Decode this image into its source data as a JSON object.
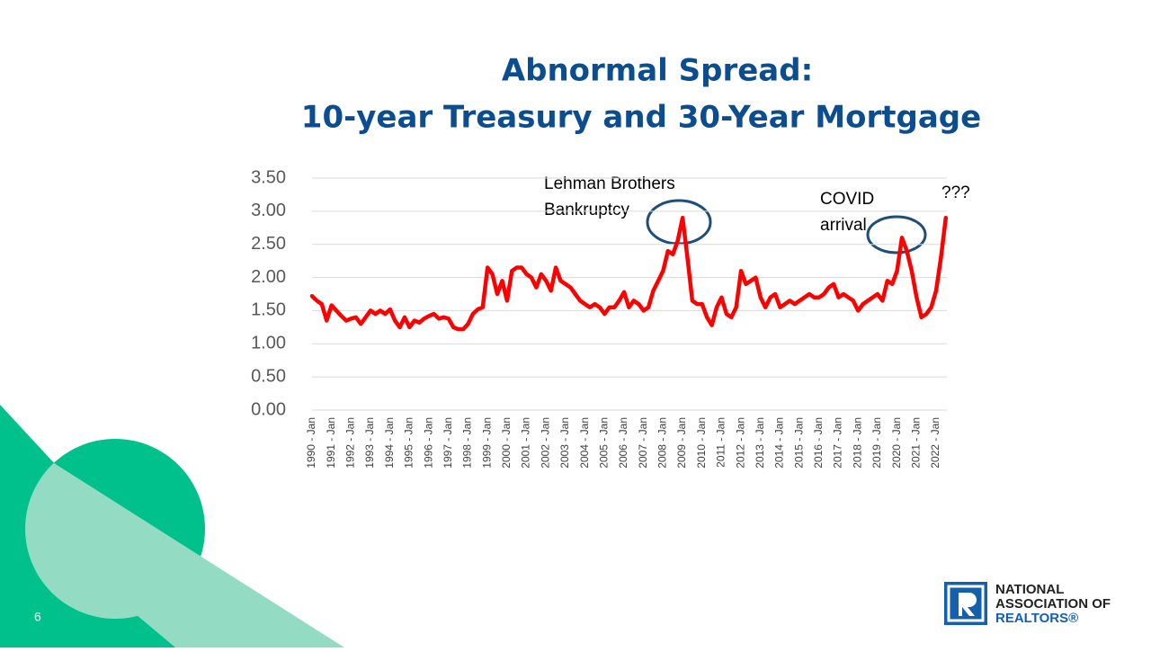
{
  "slide_number": "6",
  "logo": {
    "lines": [
      "NATIONAL",
      "ASSOCIATION OF",
      "REALTORS®"
    ]
  },
  "chart_data": {
    "type": "line",
    "title": [
      "Abnormal Spread:",
      "10-year Treasury and 30-Year Mortgage"
    ],
    "categories": [
      "1990 - Jan",
      null,
      null,
      null,
      "1991 - Jan",
      null,
      null,
      null,
      "1992 - Jan",
      null,
      null,
      null,
      "1993 - Jan",
      null,
      null,
      null,
      "1994 - Jan",
      null,
      null,
      null,
      "1995 - Jan",
      null,
      null,
      null,
      "1996 - Jan",
      null,
      null,
      null,
      "1997 - Jan",
      null,
      null,
      null,
      "1998 - Jan",
      null,
      null,
      null,
      "1999 - Jan",
      null,
      null,
      null,
      "2000 - Jan",
      null,
      null,
      null,
      "2001 - Jan",
      null,
      null,
      null,
      "2002 - Jan",
      null,
      null,
      null,
      "2003 - Jan",
      null,
      null,
      null,
      "2004 - Jan",
      null,
      null,
      null,
      "2005 - Jan",
      null,
      null,
      null,
      "2006 - Jan",
      null,
      null,
      null,
      "2007 - Jan",
      null,
      null,
      null,
      "2008 - Jan",
      null,
      null,
      null,
      "2009 - Jan",
      null,
      null,
      null,
      "2010 - Jan",
      null,
      null,
      null,
      "2011 - Jan",
      null,
      null,
      null,
      "2012 - Jan",
      null,
      null,
      null,
      "2013 - Jan",
      null,
      null,
      null,
      "2014 - Jan",
      null,
      null,
      null,
      "2015 - Jan",
      null,
      null,
      null,
      "2016 - Jan",
      null,
      null,
      null,
      "2017 - Jan",
      null,
      null,
      null,
      "2018 - Jan",
      null,
      null,
      null,
      "2019 - Jan",
      null,
      null,
      null,
      "2020 - Jan",
      null,
      null,
      null,
      "2021 - Jan",
      null,
      null,
      null,
      "2022 - Jan",
      null,
      null
    ],
    "values": [
      1.72,
      1.65,
      1.6,
      1.35,
      1.58,
      1.5,
      1.42,
      1.35,
      1.38,
      1.4,
      1.3,
      1.4,
      1.5,
      1.45,
      1.5,
      1.45,
      1.52,
      1.35,
      1.25,
      1.4,
      1.25,
      1.35,
      1.32,
      1.38,
      1.42,
      1.45,
      1.38,
      1.4,
      1.38,
      1.25,
      1.22,
      1.22,
      1.3,
      1.45,
      1.52,
      1.55,
      2.15,
      2.05,
      1.75,
      1.95,
      1.65,
      2.1,
      2.15,
      2.15,
      2.05,
      2.0,
      1.85,
      2.05,
      1.95,
      1.8,
      2.15,
      1.95,
      1.9,
      1.85,
      1.75,
      1.65,
      1.6,
      1.55,
      1.6,
      1.55,
      1.45,
      1.55,
      1.55,
      1.65,
      1.78,
      1.55,
      1.65,
      1.6,
      1.5,
      1.55,
      1.8,
      1.95,
      2.1,
      2.4,
      2.35,
      2.55,
      2.9,
      2.3,
      1.65,
      1.6,
      1.6,
      1.4,
      1.28,
      1.55,
      1.7,
      1.45,
      1.4,
      1.55,
      2.1,
      1.9,
      1.95,
      2.0,
      1.7,
      1.55,
      1.7,
      1.75,
      1.55,
      1.6,
      1.65,
      1.6,
      1.65,
      1.7,
      1.75,
      1.7,
      1.7,
      1.75,
      1.85,
      1.9,
      1.7,
      1.75,
      1.7,
      1.65,
      1.5,
      1.6,
      1.65,
      1.7,
      1.75,
      1.65,
      1.95,
      1.9,
      2.1,
      2.6,
      2.4,
      2.1,
      1.7,
      1.4,
      1.45,
      1.55,
      1.8,
      2.3,
      2.9
    ],
    "color": "#ff0000",
    "ylim": [
      0,
      3.5
    ],
    "yticks": [
      {
        "value": 0,
        "label": "0.00"
      },
      {
        "value": 0.5,
        "label": "0.50"
      },
      {
        "value": 1,
        "label": "1.00"
      },
      {
        "value": 1.5,
        "label": "1.50"
      },
      {
        "value": 2,
        "label": "2.00"
      },
      {
        "value": 2.5,
        "label": "2.50"
      },
      {
        "value": 3,
        "label": "3.00"
      },
      {
        "value": 3.5,
        "label": "3.50"
      }
    ],
    "grid": true,
    "annotations": [
      [
        "Lehman Brothers",
        "Bankruptcy"
      ],
      [
        "COVID",
        "arrival"
      ],
      [
        "???"
      ]
    ]
  }
}
